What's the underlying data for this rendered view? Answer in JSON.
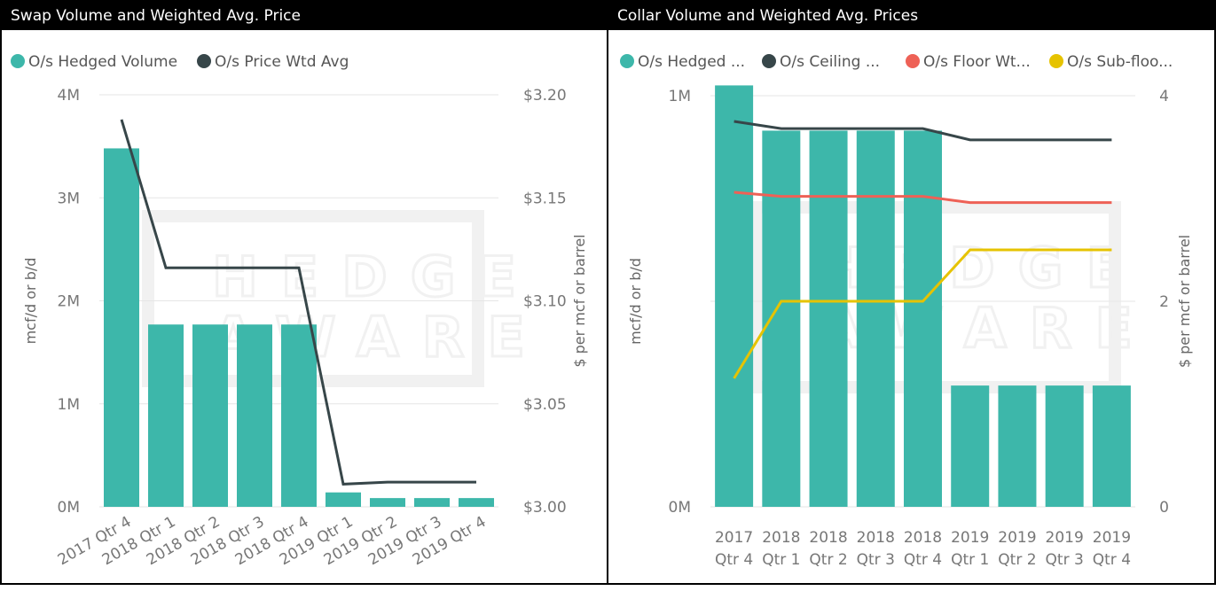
{
  "colors": {
    "teal": "#3DB7AA",
    "dark": "#374649",
    "red": "#EE6156",
    "yellow": "#E6C300",
    "grid": "#e6e6e6",
    "watermark": "#f1f1f1"
  },
  "watermark": {
    "line1": "HEDGE",
    "line2": "AWARE"
  },
  "chart_data": [
    {
      "type": "bar",
      "title": "Swap Volume and Weighted Avg. Price",
      "categories": [
        "2017 Qtr 4",
        "2018 Qtr 1",
        "2018 Qtr 2",
        "2018 Qtr 3",
        "2018 Qtr 4",
        "2019 Qtr 1",
        "2019 Qtr 2",
        "2019 Qtr 3",
        "2019 Qtr 4"
      ],
      "legend": [
        "O/s Hedged Volume",
        "O/s Price Wtd Avg"
      ],
      "legend_position": "top-left",
      "y_left": {
        "label": "mcf/d or b/d",
        "ticks": [
          "0M",
          "1M",
          "2M",
          "3M",
          "4M"
        ],
        "range": [
          0,
          4000000
        ]
      },
      "y_right": {
        "label": "$ per mcf or barrel",
        "ticks": [
          "$3.00",
          "$3.05",
          "$3.10",
          "$3.15",
          "$3.20"
        ],
        "range": [
          3.0,
          3.2
        ]
      },
      "series": [
        {
          "name": "O/s Hedged Volume",
          "kind": "bar",
          "axis": "left",
          "color": "#3DB7AA",
          "values": [
            3480000,
            1770000,
            1770000,
            1770000,
            1770000,
            140000,
            85000,
            85000,
            85000
          ]
        },
        {
          "name": "O/s Price Wtd Avg",
          "kind": "line",
          "axis": "right",
          "color": "#374649",
          "values": [
            3.188,
            3.116,
            3.116,
            3.116,
            3.116,
            3.011,
            3.012,
            3.012,
            3.012
          ]
        }
      ],
      "grid": true
    },
    {
      "type": "bar",
      "title": "Collar Volume and Weighted Avg. Prices",
      "categories": [
        [
          "2017",
          "Qtr 4"
        ],
        [
          "2018",
          "Qtr 1"
        ],
        [
          "2018",
          "Qtr 2"
        ],
        [
          "2018",
          "Qtr 3"
        ],
        [
          "2018",
          "Qtr 4"
        ],
        [
          "2019",
          "Qtr 1"
        ],
        [
          "2019",
          "Qtr 2"
        ],
        [
          "2019",
          "Qtr 3"
        ],
        [
          "2019",
          "Qtr 4"
        ]
      ],
      "legend": [
        "O/s Hedged ...",
        "O/s Ceiling ...",
        "O/s Floor Wt...",
        "O/s Sub-floo..."
      ],
      "legend_position": "top-left",
      "y_left": {
        "label": "mcf/d or b/d",
        "ticks": [
          "0M",
          "1M"
        ],
        "range": [
          0,
          1000000
        ]
      },
      "y_right": {
        "label": "$ per mcf or barrel",
        "ticks": [
          "0",
          "2",
          "4"
        ],
        "range": [
          0,
          4
        ]
      },
      "series": [
        {
          "name": "O/s Hedged ...",
          "kind": "bar",
          "axis": "left",
          "color": "#3DB7AA",
          "values": [
            1025000,
            915000,
            915000,
            915000,
            915000,
            295000,
            295000,
            295000,
            295000
          ]
        },
        {
          "name": "O/s Ceiling ...",
          "kind": "line",
          "axis": "right",
          "color": "#374649",
          "values": [
            3.75,
            3.68,
            3.68,
            3.68,
            3.68,
            3.57,
            3.57,
            3.57,
            3.57
          ]
        },
        {
          "name": "O/s Floor Wt...",
          "kind": "line",
          "axis": "right",
          "color": "#EE6156",
          "values": [
            3.06,
            3.02,
            3.02,
            3.02,
            3.02,
            2.96,
            2.96,
            2.96,
            2.96
          ]
        },
        {
          "name": "O/s Sub-floo...",
          "kind": "line",
          "axis": "right",
          "color": "#E6C300",
          "values": [
            1.25,
            2.0,
            2.0,
            2.0,
            2.0,
            2.5,
            2.5,
            2.5,
            2.5
          ]
        }
      ],
      "grid": true
    }
  ]
}
